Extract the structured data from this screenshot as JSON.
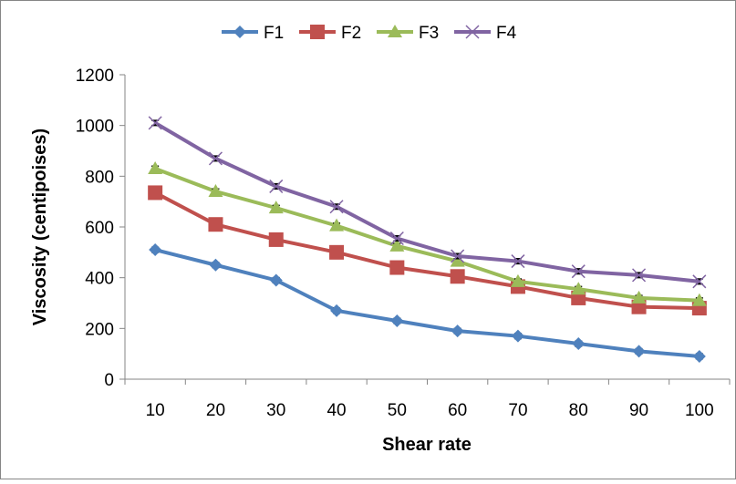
{
  "chart_data": {
    "type": "line",
    "title": "",
    "xlabel": "Shear rate",
    "ylabel": "Viscosity (centipoises)",
    "ylim": [
      0,
      1200
    ],
    "yticks": [
      0,
      200,
      400,
      600,
      800,
      1000,
      1200
    ],
    "categories": [
      "10",
      "20",
      "30",
      "40",
      "50",
      "60",
      "70",
      "80",
      "90",
      "100"
    ],
    "legend_position": "top",
    "grid": false,
    "series": [
      {
        "name": "F1",
        "color": "#4F81BD",
        "marker": "diamond",
        "values": [
          510,
          450,
          390,
          270,
          230,
          190,
          170,
          140,
          110,
          90
        ]
      },
      {
        "name": "F2",
        "color": "#C0504D",
        "marker": "square",
        "values": [
          735,
          610,
          550,
          500,
          440,
          405,
          365,
          320,
          285,
          280
        ]
      },
      {
        "name": "F3",
        "color": "#9BBB59",
        "marker": "triangle",
        "values": [
          830,
          740,
          675,
          605,
          525,
          465,
          385,
          355,
          320,
          310
        ]
      },
      {
        "name": "F4",
        "color": "#8064A2",
        "marker": "x",
        "values": [
          1010,
          870,
          760,
          680,
          555,
          485,
          465,
          425,
          410,
          385
        ]
      }
    ],
    "error_bar": 10
  }
}
